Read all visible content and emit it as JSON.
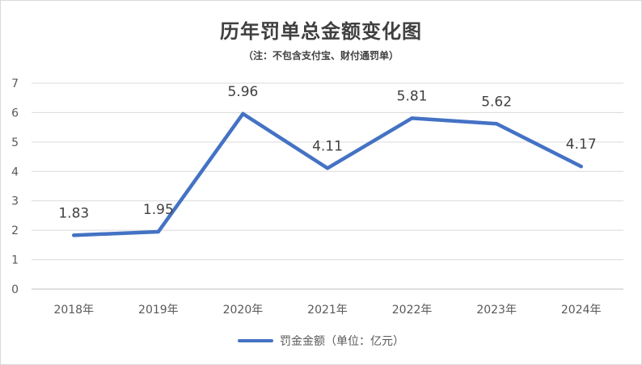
{
  "chart_data": {
    "type": "line",
    "title": "历年罚单总金额变化图",
    "subtitle": "（注：不包含支付宝、财付通罚单）",
    "categories": [
      "2018年",
      "2019年",
      "2020年",
      "2021年",
      "2022年",
      "2023年",
      "2024年"
    ],
    "series": [
      {
        "name": "罚金金额（单位：亿元）",
        "values": [
          1.83,
          1.95,
          5.96,
          4.11,
          5.81,
          5.62,
          4.17
        ],
        "color": "#4472c4"
      }
    ],
    "data_labels": [
      "1.83",
      "1.95",
      "5.96",
      "4.11",
      "5.81",
      "5.62",
      "4.17"
    ],
    "yticks": [
      "0",
      "1",
      "2",
      "3",
      "4",
      "5",
      "6",
      "7"
    ],
    "ylim": [
      0,
      7
    ],
    "xlabel": "",
    "ylabel": "",
    "grid": true,
    "legend_position": "bottom"
  }
}
